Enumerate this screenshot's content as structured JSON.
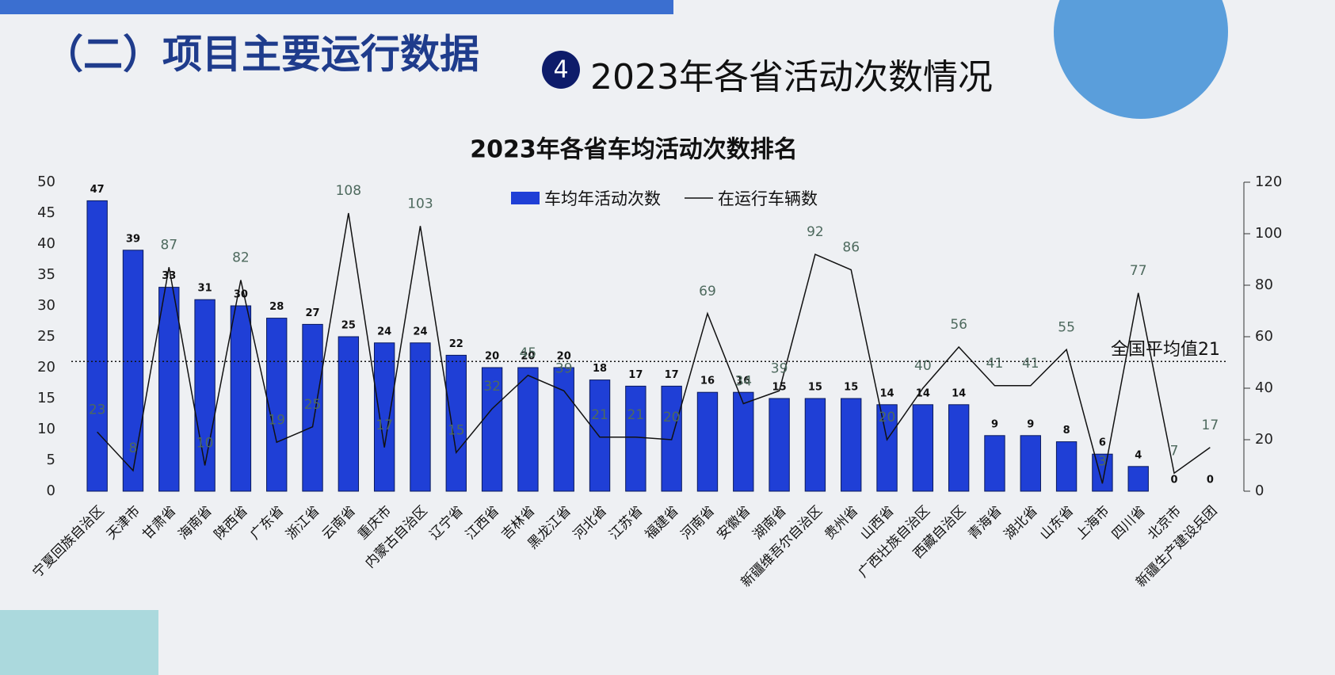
{
  "header": {
    "section_title": "（二）项目主要运行数据",
    "badge": "4",
    "subtitle": "2023年各省活动次数情况"
  },
  "chart_data": {
    "type": "bar",
    "title": "2023年各省车均活动次数排名",
    "categories": [
      "宁夏回族自治区",
      "天津市",
      "甘肃省",
      "海南省",
      "陕西省",
      "广东省",
      "浙江省",
      "云南省",
      "重庆市",
      "内蒙古自治区",
      "辽宁省",
      "江西省",
      "吉林省",
      "黑龙江省",
      "河北省",
      "江苏省",
      "福建省",
      "河南省",
      "安徽省",
      "湖南省",
      "新疆维吾尔自治区",
      "贵州省",
      "山西省",
      "广西壮族自治区",
      "西藏自治区",
      "青海省",
      "湖北省",
      "山东省",
      "上海市",
      "四川省",
      "北京市",
      "新疆生产建设兵团"
    ],
    "series": [
      {
        "name": "车均年活动次数",
        "type": "bar",
        "color": "#1f3fd6",
        "values": [
          47,
          39,
          33,
          31,
          30,
          28,
          27,
          25,
          24,
          24,
          22,
          20,
          20,
          20,
          18,
          17,
          17,
          16,
          16,
          15,
          15,
          15,
          14,
          14,
          14,
          9,
          9,
          8,
          6,
          4,
          0,
          0
        ]
      },
      {
        "name": "在运行车辆数",
        "type": "line",
        "axis": "y2",
        "color": "#111111",
        "values": [
          23,
          8,
          87,
          10,
          82,
          19,
          25,
          108,
          17,
          103,
          15,
          32,
          45,
          39,
          21,
          21,
          20,
          69,
          34,
          39,
          92,
          86,
          20,
          40,
          56,
          41,
          41,
          55,
          3,
          77,
          7,
          17
        ]
      }
    ],
    "ylim": [
      0,
      50
    ],
    "yticks": [
      0,
      5,
      10,
      15,
      20,
      25,
      30,
      35,
      40,
      45,
      50
    ],
    "y2lim": [
      0,
      120
    ],
    "y2ticks": [
      0,
      20,
      40,
      60,
      80,
      100,
      120
    ],
    "average": {
      "value": 21,
      "label": "全国平均值21"
    }
  }
}
